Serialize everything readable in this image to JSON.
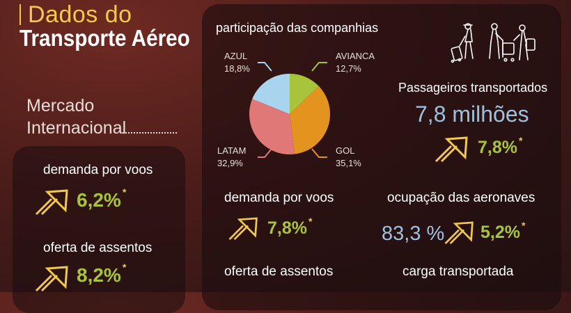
{
  "title": {
    "line1": "Dados do",
    "line2": "Transporte Aéreo"
  },
  "left": {
    "section_line1": "Mercado",
    "section_line2": "Internacional",
    "demanda": {
      "label": "demanda por voos",
      "value": "6,2%",
      "mark": "*"
    },
    "oferta": {
      "label": "oferta de assentos",
      "value": "8,2%",
      "mark": "*"
    }
  },
  "pie": {
    "title": "participação das companhias",
    "slices": [
      {
        "name": "AZUL",
        "value": 18.8,
        "label_value": "18,8%",
        "color": "#a8d4ee"
      },
      {
        "name": "AVIANCA",
        "value": 12.7,
        "label_value": "12,7%",
        "color": "#a8c43a"
      },
      {
        "name": "GOL",
        "value": 35.1,
        "label_value": "35,1%",
        "color": "#e3941f"
      },
      {
        "name": "LATAM",
        "value": 32.9,
        "label_value": "32,9%",
        "color": "#e07878"
      }
    ]
  },
  "right": {
    "passageiros": {
      "label": "Passageiros transportados",
      "amount": "7,8 milhões",
      "value": "7,8%",
      "mark": "*"
    },
    "demanda": {
      "label": "demanda por voos",
      "value": "7,8%",
      "mark": "*"
    },
    "ocupacao": {
      "label": "ocupação das aeronaves",
      "amount": "83,3 %",
      "value": "5,2%",
      "mark": "*"
    },
    "oferta": {
      "label": "oferta de assentos"
    },
    "carga": {
      "label": "carga transportada"
    }
  },
  "icons": {
    "arrow": "up-right-arrow-icon",
    "travelers": "travelers-icon"
  },
  "colors": {
    "accent_yellow": "#f2c94c",
    "accent_green": "#a8c43a",
    "accent_blue": "#9ec1e0"
  }
}
